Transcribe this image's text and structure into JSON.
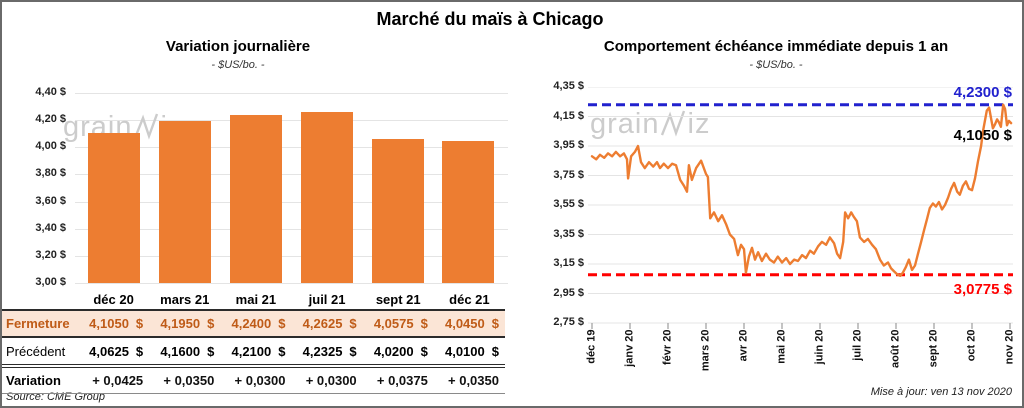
{
  "header": {
    "title": "Marché du maïs à Chicago"
  },
  "watermark": {
    "part1": "grain",
    "part2": "iz"
  },
  "colors": {
    "bar_orange": "#ED7D31",
    "line_orange": "#ED7D31",
    "ref_blue": "#2121CE",
    "ref_red": "#FF0000",
    "variation_green": "#00A22E",
    "fermeture_bg": "#FBE5D6",
    "fermeture_text": "#BF5B17",
    "gridline": "#e4e4e4",
    "watermark_gray": "#cccccc"
  },
  "chart_data": [
    {
      "type": "bar",
      "title": "Variation journalière",
      "subtitle": "- $US/bo. -",
      "categories": [
        "déc 20",
        "mars 21",
        "mai 21",
        "juil 21",
        "sept 21",
        "déc 21"
      ],
      "values": [
        4.105,
        4.195,
        4.24,
        4.2625,
        4.0575,
        4.045
      ],
      "ylim": [
        3.0,
        4.4
      ],
      "ytick_step": 0.2,
      "ytick_labels": [
        "4,40 $",
        "4,20 $",
        "4,00 $",
        "3,80 $",
        "3,60 $",
        "3,40 $",
        "3,20 $",
        "3,00 $"
      ],
      "grid": true,
      "bar_color": "#ED7D31"
    },
    {
      "type": "line",
      "title": "Comportement échéance immédiate depuis 1 an",
      "subtitle": "- $US/bo. -",
      "x_tick_labels": [
        "déc 19",
        "janv 20",
        "févr 20",
        "mars 20",
        "avr 20",
        "mai 20",
        "juin 20",
        "juil 20",
        "août 20",
        "sept 20",
        "oct 20",
        "nov 20"
      ],
      "ylim": [
        2.75,
        4.35
      ],
      "ytick_step": 0.2,
      "ytick_labels": [
        "4,35 $",
        "4,15 $",
        "3,95 $",
        "3,75 $",
        "3,55 $",
        "3,35 $",
        "3,15 $",
        "2,95 $",
        "2,75 $"
      ],
      "grid": true,
      "line_color": "#ED7D31",
      "ref_lines": [
        {
          "value": 4.23,
          "label": "4,2300 $",
          "color": "#2121CE"
        },
        {
          "value": 3.0775,
          "label": "3,0775 $",
          "color": "#FF0000"
        }
      ],
      "last_point": {
        "value": 4.105,
        "label": "4,1050 $",
        "color": "#000000"
      },
      "points": [
        [
          0,
          3.88
        ],
        [
          0.11,
          3.86
        ],
        [
          0.21,
          3.89
        ],
        [
          0.32,
          3.87
        ],
        [
          0.42,
          3.9
        ],
        [
          0.53,
          3.88
        ],
        [
          0.63,
          3.91
        ],
        [
          0.74,
          3.88
        ],
        [
          0.84,
          3.9
        ],
        [
          0.92,
          3.86
        ],
        [
          0.95,
          3.73
        ],
        [
          1.03,
          3.88
        ],
        [
          1.13,
          3.91
        ],
        [
          1.21,
          3.95
        ],
        [
          1.29,
          3.84
        ],
        [
          1.39,
          3.8
        ],
        [
          1.5,
          3.84
        ],
        [
          1.61,
          3.81
        ],
        [
          1.71,
          3.84
        ],
        [
          1.79,
          3.8
        ],
        [
          1.89,
          3.83
        ],
        [
          2.0,
          3.8
        ],
        [
          2.11,
          3.83
        ],
        [
          2.21,
          3.82
        ],
        [
          2.32,
          3.72
        ],
        [
          2.42,
          3.68
        ],
        [
          2.5,
          3.64
        ],
        [
          2.55,
          3.82
        ],
        [
          2.63,
          3.72
        ],
        [
          2.74,
          3.8
        ],
        [
          2.87,
          3.85
        ],
        [
          3.0,
          3.76
        ],
        [
          3.05,
          3.74
        ],
        [
          3.11,
          3.46
        ],
        [
          3.21,
          3.5
        ],
        [
          3.32,
          3.44
        ],
        [
          3.42,
          3.48
        ],
        [
          3.53,
          3.42
        ],
        [
          3.63,
          3.35
        ],
        [
          3.74,
          3.32
        ],
        [
          3.84,
          3.21
        ],
        [
          3.92,
          3.28
        ],
        [
          4.0,
          3.25
        ],
        [
          4.05,
          3.09
        ],
        [
          4.13,
          3.2
        ],
        [
          4.21,
          3.26
        ],
        [
          4.29,
          3.18
        ],
        [
          4.37,
          3.23
        ],
        [
          4.47,
          3.17
        ],
        [
          4.58,
          3.22
        ],
        [
          4.68,
          3.18
        ],
        [
          4.79,
          3.16
        ],
        [
          4.89,
          3.2
        ],
        [
          5.0,
          3.16
        ],
        [
          5.11,
          3.19
        ],
        [
          5.21,
          3.15
        ],
        [
          5.32,
          3.18
        ],
        [
          5.42,
          3.17
        ],
        [
          5.53,
          3.21
        ],
        [
          5.63,
          3.19
        ],
        [
          5.74,
          3.24
        ],
        [
          5.84,
          3.22
        ],
        [
          5.95,
          3.27
        ],
        [
          6.05,
          3.3
        ],
        [
          6.16,
          3.28
        ],
        [
          6.26,
          3.33
        ],
        [
          6.37,
          3.29
        ],
        [
          6.45,
          3.22
        ],
        [
          6.53,
          3.19
        ],
        [
          6.61,
          3.3
        ],
        [
          6.66,
          3.5
        ],
        [
          6.74,
          3.46
        ],
        [
          6.82,
          3.5
        ],
        [
          6.89,
          3.47
        ],
        [
          6.97,
          3.44
        ],
        [
          7.05,
          3.33
        ],
        [
          7.16,
          3.3
        ],
        [
          7.26,
          3.32
        ],
        [
          7.37,
          3.28
        ],
        [
          7.47,
          3.25
        ],
        [
          7.58,
          3.18
        ],
        [
          7.68,
          3.14
        ],
        [
          7.79,
          3.16
        ],
        [
          7.87,
          3.12
        ],
        [
          7.95,
          3.1
        ],
        [
          8.03,
          3.08
        ],
        [
          8.11,
          3.07
        ],
        [
          8.18,
          3.09
        ],
        [
          8.26,
          3.13
        ],
        [
          8.34,
          3.18
        ],
        [
          8.42,
          3.11
        ],
        [
          8.5,
          3.14
        ],
        [
          8.58,
          3.22
        ],
        [
          8.66,
          3.3
        ],
        [
          8.74,
          3.38
        ],
        [
          8.82,
          3.46
        ],
        [
          8.89,
          3.53
        ],
        [
          8.97,
          3.56
        ],
        [
          9.05,
          3.54
        ],
        [
          9.13,
          3.57
        ],
        [
          9.21,
          3.52
        ],
        [
          9.29,
          3.55
        ],
        [
          9.37,
          3.6
        ],
        [
          9.45,
          3.66
        ],
        [
          9.53,
          3.7
        ],
        [
          9.61,
          3.64
        ],
        [
          9.68,
          3.62
        ],
        [
          9.76,
          3.68
        ],
        [
          9.84,
          3.71
        ],
        [
          9.92,
          3.66
        ],
        [
          10.0,
          3.65
        ],
        [
          10.08,
          3.73
        ],
        [
          10.16,
          3.85
        ],
        [
          10.24,
          3.95
        ],
        [
          10.29,
          4.05
        ],
        [
          10.34,
          4.12
        ],
        [
          10.39,
          4.19
        ],
        [
          10.45,
          4.21
        ],
        [
          10.5,
          4.14
        ],
        [
          10.55,
          4.07
        ],
        [
          10.61,
          4.1
        ],
        [
          10.66,
          4.13
        ],
        [
          10.71,
          4.11
        ],
        [
          10.76,
          4.08
        ],
        [
          10.82,
          4.23
        ],
        [
          10.87,
          4.2
        ],
        [
          10.92,
          4.09
        ],
        [
          10.97,
          4.12
        ],
        [
          11.03,
          4.105
        ]
      ]
    }
  ],
  "table": {
    "columns": [
      "déc 20",
      "mars 21",
      "mai 21",
      "juil 21",
      "sept 21",
      "déc 21"
    ],
    "currency": "$",
    "rows": [
      {
        "label": "Fermeture",
        "style": "fermeture",
        "with_currency": true,
        "values": [
          "4,1050",
          "4,1950",
          "4,2400",
          "4,2625",
          "4,0575",
          "4,0450"
        ]
      },
      {
        "label": "Précédent",
        "style": "precedent",
        "with_currency": true,
        "values": [
          "4,0625",
          "4,1600",
          "4,2100",
          "4,2325",
          "4,0200",
          "4,0100"
        ]
      },
      {
        "label": "Variation",
        "style": "variation",
        "with_currency": false,
        "values": [
          "+ 0,0425",
          "+ 0,0350",
          "+ 0,0300",
          "+ 0,0300",
          "+ 0,0375",
          "+ 0,0350"
        ]
      }
    ]
  },
  "footer": {
    "source": "Source: CME Group",
    "updated": "Mise à jour: ven 13 nov 2020"
  }
}
